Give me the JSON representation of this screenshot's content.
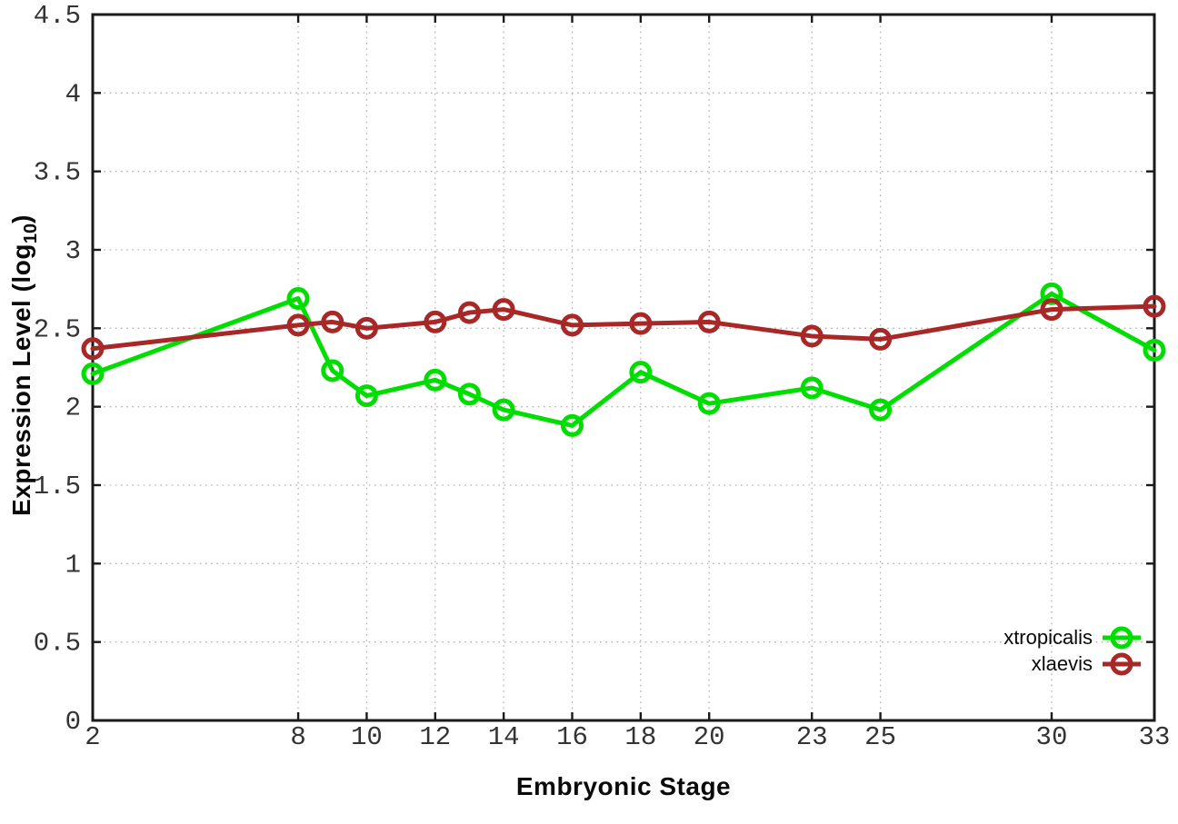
{
  "chart_data": {
    "type": "line",
    "title": "",
    "xlabel": "Embryonic Stage",
    "ylabel": "Expression Level (log10)",
    "ylabel_parts": {
      "prefix": "Expression Level (log",
      "sub": "10",
      "suffix": ")"
    },
    "xlim": [
      2,
      33
    ],
    "ylim": [
      0,
      4.5
    ],
    "grid": true,
    "legend_position": "bottom-right",
    "x_tick_values": [
      2,
      8,
      10,
      12,
      14,
      16,
      18,
      20,
      23,
      25,
      30,
      33
    ],
    "x_tick_labels": [
      "2",
      "8",
      "10",
      "12",
      "14",
      "16",
      "18",
      "20",
      "23",
      "25",
      "30",
      "33"
    ],
    "y_tick_values": [
      0,
      0.5,
      1,
      1.5,
      2,
      2.5,
      3,
      3.5,
      4,
      4.5
    ],
    "y_tick_labels": [
      "0",
      "0.5",
      "1",
      "1.5",
      "2",
      "2.5",
      "3",
      "3.5",
      "4",
      "4.5"
    ],
    "x": [
      2,
      8,
      9,
      10,
      12,
      13,
      14,
      16,
      18,
      20,
      23,
      25,
      30,
      33
    ],
    "series": [
      {
        "name": "xtropicalis",
        "color": "#00dd00",
        "marker": "open-circle",
        "values": [
          2.21,
          2.69,
          2.23,
          2.07,
          2.17,
          2.08,
          1.98,
          1.88,
          2.22,
          2.02,
          2.12,
          1.98,
          2.72,
          2.36
        ]
      },
      {
        "name": "xlaevis",
        "color": "#a82727",
        "marker": "open-circle",
        "values": [
          2.37,
          2.52,
          2.54,
          2.5,
          2.54,
          2.6,
          2.62,
          2.52,
          2.53,
          2.54,
          2.45,
          2.43,
          2.62,
          2.64
        ]
      }
    ],
    "colors": {
      "border": "#1a1a1a",
      "grid": "#b3b3b3",
      "tick_label": "#333333",
      "title": "#0a0a0a"
    }
  }
}
